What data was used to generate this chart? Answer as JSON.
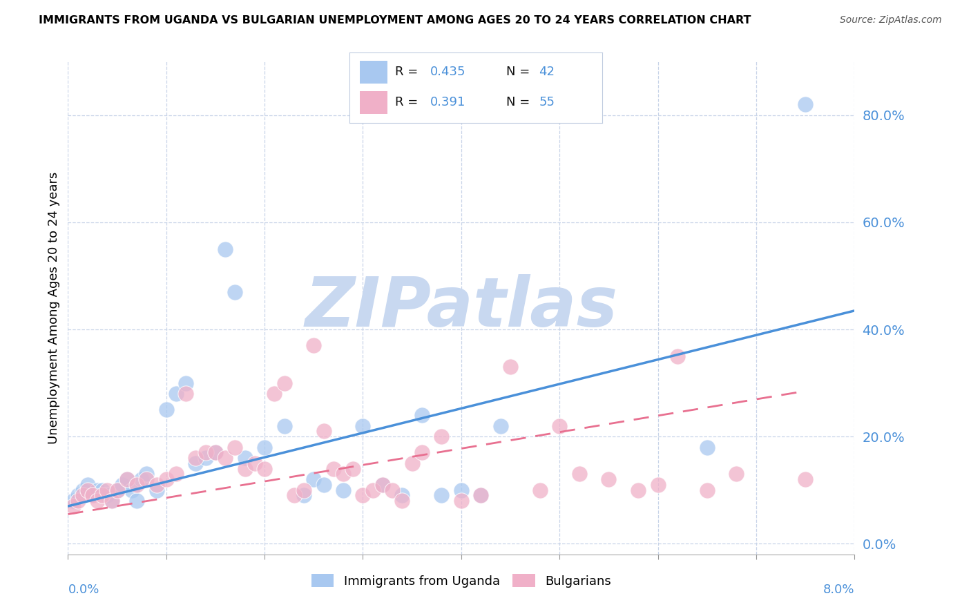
{
  "title": "IMMIGRANTS FROM UGANDA VS BULGARIAN UNEMPLOYMENT AMONG AGES 20 TO 24 YEARS CORRELATION CHART",
  "source": "Source: ZipAtlas.com",
  "ylabel": "Unemployment Among Ages 20 to 24 years",
  "ytick_vals": [
    0.0,
    0.2,
    0.4,
    0.6,
    0.8
  ],
  "ytick_labels": [
    "0.0%",
    "20.0%",
    "40.0%",
    "60.0%",
    "80.0%"
  ],
  "xlim": [
    0.0,
    0.08
  ],
  "ylim": [
    -0.02,
    0.9
  ],
  "legend_blue_R": "0.435",
  "legend_blue_N": "42",
  "legend_pink_R": "0.391",
  "legend_pink_N": "55",
  "legend_label_blue": "Immigrants from Uganda",
  "legend_label_pink": "Bulgarians",
  "watermark": "ZIPatlas",
  "watermark_color": "#c8d8f0",
  "blue_fill": "#a8c8f0",
  "pink_fill": "#f0b0c8",
  "blue_line_color": "#4a90d9",
  "pink_line_color": "#e87090",
  "background_color": "#ffffff",
  "grid_color": "#c8d4e8",
  "tick_label_color": "#4a90d9",
  "blue_line_x": [
    0.0,
    0.08
  ],
  "blue_line_y": [
    0.07,
    0.435
  ],
  "pink_line_x": [
    0.0,
    0.075
  ],
  "pink_line_y": [
    0.055,
    0.285
  ],
  "blue_x": [
    0.0005,
    0.001,
    0.0015,
    0.002,
    0.0025,
    0.003,
    0.0035,
    0.004,
    0.0045,
    0.005,
    0.0055,
    0.006,
    0.0065,
    0.007,
    0.0075,
    0.008,
    0.009,
    0.01,
    0.011,
    0.012,
    0.013,
    0.014,
    0.015,
    0.016,
    0.017,
    0.018,
    0.02,
    0.022,
    0.024,
    0.025,
    0.026,
    0.028,
    0.03,
    0.032,
    0.034,
    0.036,
    0.038,
    0.04,
    0.042,
    0.044,
    0.065,
    0.075
  ],
  "blue_y": [
    0.08,
    0.09,
    0.1,
    0.11,
    0.09,
    0.1,
    0.1,
    0.09,
    0.08,
    0.1,
    0.11,
    0.12,
    0.1,
    0.08,
    0.12,
    0.13,
    0.1,
    0.25,
    0.28,
    0.3,
    0.15,
    0.16,
    0.17,
    0.55,
    0.47,
    0.16,
    0.18,
    0.22,
    0.09,
    0.12,
    0.11,
    0.1,
    0.22,
    0.11,
    0.09,
    0.24,
    0.09,
    0.1,
    0.09,
    0.22,
    0.18,
    0.82
  ],
  "pink_x": [
    0.0005,
    0.001,
    0.0015,
    0.002,
    0.0025,
    0.003,
    0.0035,
    0.004,
    0.0045,
    0.005,
    0.006,
    0.007,
    0.008,
    0.009,
    0.01,
    0.011,
    0.012,
    0.013,
    0.014,
    0.015,
    0.016,
    0.017,
    0.018,
    0.019,
    0.02,
    0.021,
    0.022,
    0.023,
    0.024,
    0.025,
    0.026,
    0.027,
    0.028,
    0.029,
    0.03,
    0.031,
    0.032,
    0.033,
    0.034,
    0.035,
    0.036,
    0.038,
    0.04,
    0.042,
    0.045,
    0.048,
    0.05,
    0.052,
    0.055,
    0.058,
    0.06,
    0.062,
    0.065,
    0.068,
    0.075
  ],
  "pink_y": [
    0.07,
    0.08,
    0.09,
    0.1,
    0.09,
    0.08,
    0.09,
    0.1,
    0.08,
    0.1,
    0.12,
    0.11,
    0.12,
    0.11,
    0.12,
    0.13,
    0.28,
    0.16,
    0.17,
    0.17,
    0.16,
    0.18,
    0.14,
    0.15,
    0.14,
    0.28,
    0.3,
    0.09,
    0.1,
    0.37,
    0.21,
    0.14,
    0.13,
    0.14,
    0.09,
    0.1,
    0.11,
    0.1,
    0.08,
    0.15,
    0.17,
    0.2,
    0.08,
    0.09,
    0.33,
    0.1,
    0.22,
    0.13,
    0.12,
    0.1,
    0.11,
    0.35,
    0.1,
    0.13,
    0.12
  ]
}
